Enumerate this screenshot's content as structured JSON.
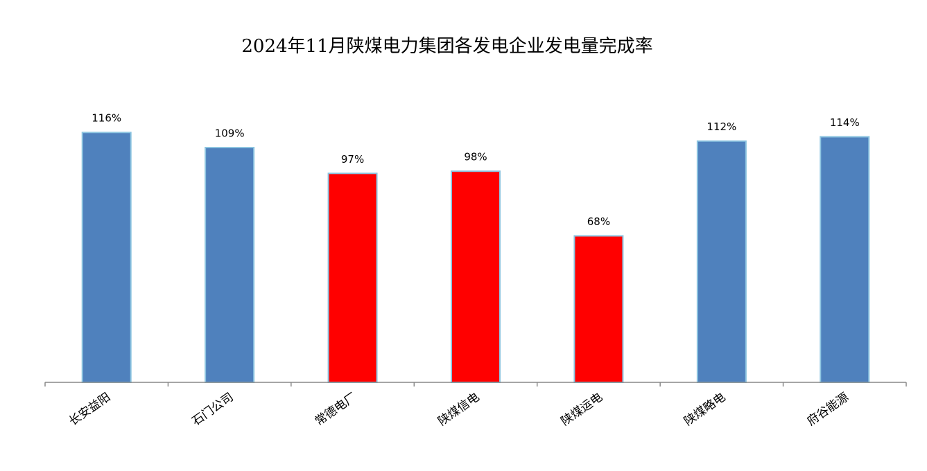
{
  "chart_data": {
    "type": "bar",
    "title": "2024年11月陕煤电力集团各发电企业发电量完成率",
    "categories": [
      "长安益阳",
      "石门公司",
      "常德电厂",
      "陕煤信电",
      "陕煤运电",
      "陕煤略电",
      "府谷能源"
    ],
    "values": [
      116,
      109,
      97,
      98,
      68,
      112,
      114
    ],
    "value_labels": [
      "116%",
      "109%",
      "97%",
      "98%",
      "68%",
      "112%",
      "114%"
    ],
    "colors": [
      "#4f81bd",
      "#4f81bd",
      "#ff0000",
      "#ff0000",
      "#ff0000",
      "#4f81bd",
      "#4f81bd"
    ]
  }
}
